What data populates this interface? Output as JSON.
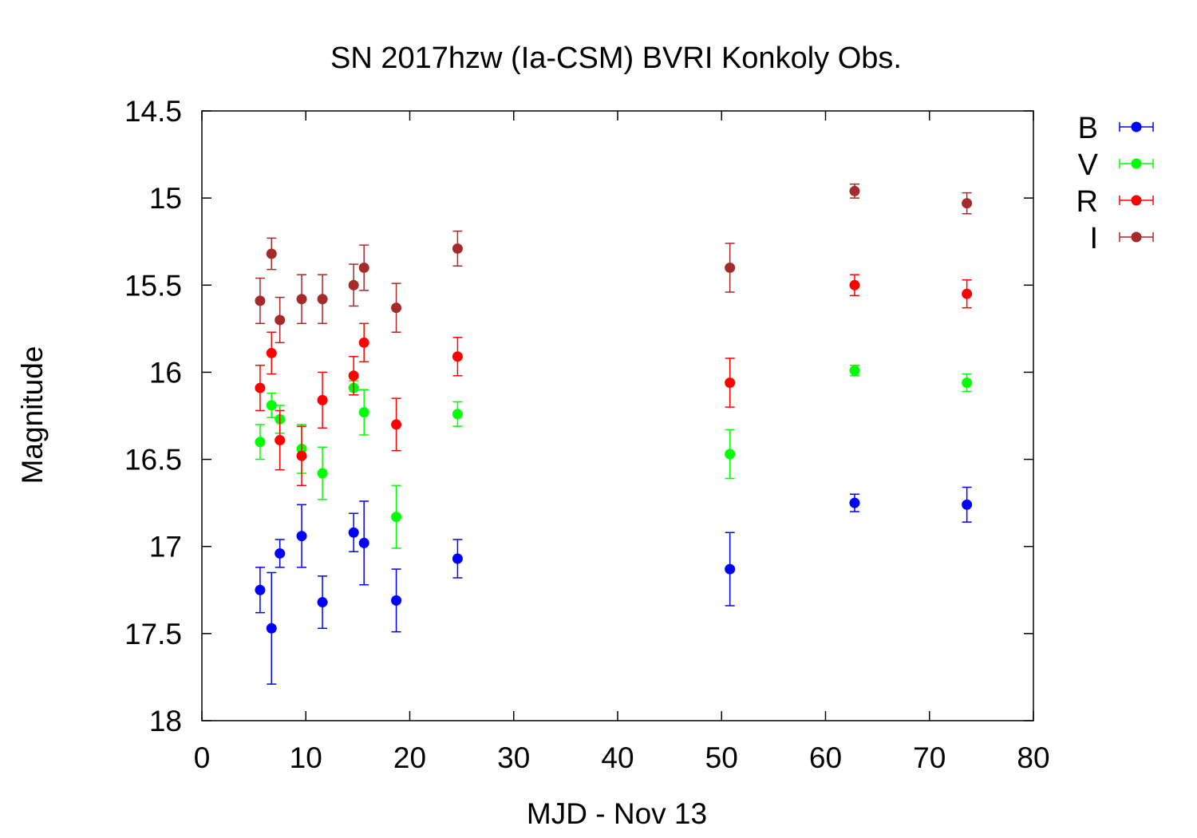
{
  "chart_data": {
    "type": "scatter",
    "title": "SN 2017hzw (Ia-CSM) BVRI Konkoly Obs.",
    "xlabel": "MJD - Nov 13",
    "ylabel": "Magnitude",
    "xlim": [
      0,
      80
    ],
    "ylim": [
      14.5,
      18
    ],
    "y_inverted": true,
    "grid": false,
    "legend_position": "outside-right",
    "x_ticks": [
      0,
      10,
      20,
      30,
      40,
      50,
      60,
      70,
      80
    ],
    "y_ticks": [
      14.5,
      15,
      15.5,
      16,
      16.5,
      17,
      17.5,
      18
    ],
    "x_tick_labels": [
      "0",
      "10",
      "20",
      "30",
      "40",
      "50",
      "60",
      "70",
      "80"
    ],
    "y_tick_labels": [
      "14.5",
      "15",
      "15.5",
      "16",
      "16.5",
      "17",
      "17.5",
      "18"
    ],
    "series": [
      {
        "name": "B",
        "color": "#0000ff",
        "points": [
          {
            "x": 5.6,
            "y": 17.25,
            "err": 0.13
          },
          {
            "x": 6.7,
            "y": 17.47,
            "err": 0.32
          },
          {
            "x": 7.5,
            "y": 17.04,
            "err": 0.08
          },
          {
            "x": 9.6,
            "y": 16.94,
            "err": 0.18
          },
          {
            "x": 11.6,
            "y": 17.32,
            "err": 0.15
          },
          {
            "x": 14.6,
            "y": 16.92,
            "err": 0.11
          },
          {
            "x": 15.6,
            "y": 16.98,
            "err": 0.24
          },
          {
            "x": 18.7,
            "y": 17.31,
            "err": 0.18
          },
          {
            "x": 24.6,
            "y": 17.07,
            "err": 0.11
          },
          {
            "x": 50.8,
            "y": 17.13,
            "err": 0.21
          },
          {
            "x": 62.8,
            "y": 16.75,
            "err": 0.05
          },
          {
            "x": 73.6,
            "y": 16.76,
            "err": 0.1
          }
        ]
      },
      {
        "name": "V",
        "color": "#00ff00",
        "points": [
          {
            "x": 5.6,
            "y": 16.4,
            "err": 0.1
          },
          {
            "x": 6.7,
            "y": 16.19,
            "err": 0.07
          },
          {
            "x": 7.5,
            "y": 16.27,
            "err": 0.08
          },
          {
            "x": 9.6,
            "y": 16.44,
            "err": 0.14
          },
          {
            "x": 11.6,
            "y": 16.58,
            "err": 0.15
          },
          {
            "x": 14.6,
            "y": 16.09,
            "err": 0.04
          },
          {
            "x": 15.6,
            "y": 16.23,
            "err": 0.13
          },
          {
            "x": 18.7,
            "y": 16.83,
            "err": 0.18
          },
          {
            "x": 24.6,
            "y": 16.24,
            "err": 0.07
          },
          {
            "x": 50.8,
            "y": 16.47,
            "err": 0.14
          },
          {
            "x": 62.8,
            "y": 15.99,
            "err": 0.03
          },
          {
            "x": 73.6,
            "y": 16.06,
            "err": 0.05
          }
        ]
      },
      {
        "name": "R",
        "color": "#ff0000",
        "points": [
          {
            "x": 5.6,
            "y": 16.09,
            "err": 0.13
          },
          {
            "x": 6.7,
            "y": 15.89,
            "err": 0.12
          },
          {
            "x": 7.5,
            "y": 16.39,
            "err": 0.17
          },
          {
            "x": 9.6,
            "y": 16.48,
            "err": 0.17
          },
          {
            "x": 11.6,
            "y": 16.16,
            "err": 0.16
          },
          {
            "x": 14.6,
            "y": 16.02,
            "err": 0.11
          },
          {
            "x": 15.6,
            "y": 15.83,
            "err": 0.11
          },
          {
            "x": 18.7,
            "y": 16.3,
            "err": 0.15
          },
          {
            "x": 24.6,
            "y": 15.91,
            "err": 0.11
          },
          {
            "x": 50.8,
            "y": 16.06,
            "err": 0.14
          },
          {
            "x": 62.8,
            "y": 15.5,
            "err": 0.06
          },
          {
            "x": 73.6,
            "y": 15.55,
            "err": 0.08
          }
        ]
      },
      {
        "name": "I",
        "color": "#a52a2a",
        "points": [
          {
            "x": 5.6,
            "y": 15.59,
            "err": 0.13
          },
          {
            "x": 6.7,
            "y": 15.32,
            "err": 0.09
          },
          {
            "x": 7.5,
            "y": 15.7,
            "err": 0.13
          },
          {
            "x": 9.6,
            "y": 15.58,
            "err": 0.14
          },
          {
            "x": 11.6,
            "y": 15.58,
            "err": 0.14
          },
          {
            "x": 14.6,
            "y": 15.5,
            "err": 0.12
          },
          {
            "x": 15.6,
            "y": 15.4,
            "err": 0.13
          },
          {
            "x": 18.7,
            "y": 15.63,
            "err": 0.14
          },
          {
            "x": 24.6,
            "y": 15.29,
            "err": 0.1
          },
          {
            "x": 50.8,
            "y": 15.4,
            "err": 0.14
          },
          {
            "x": 62.8,
            "y": 14.96,
            "err": 0.04
          },
          {
            "x": 73.6,
            "y": 15.03,
            "err": 0.06
          }
        ]
      }
    ]
  }
}
